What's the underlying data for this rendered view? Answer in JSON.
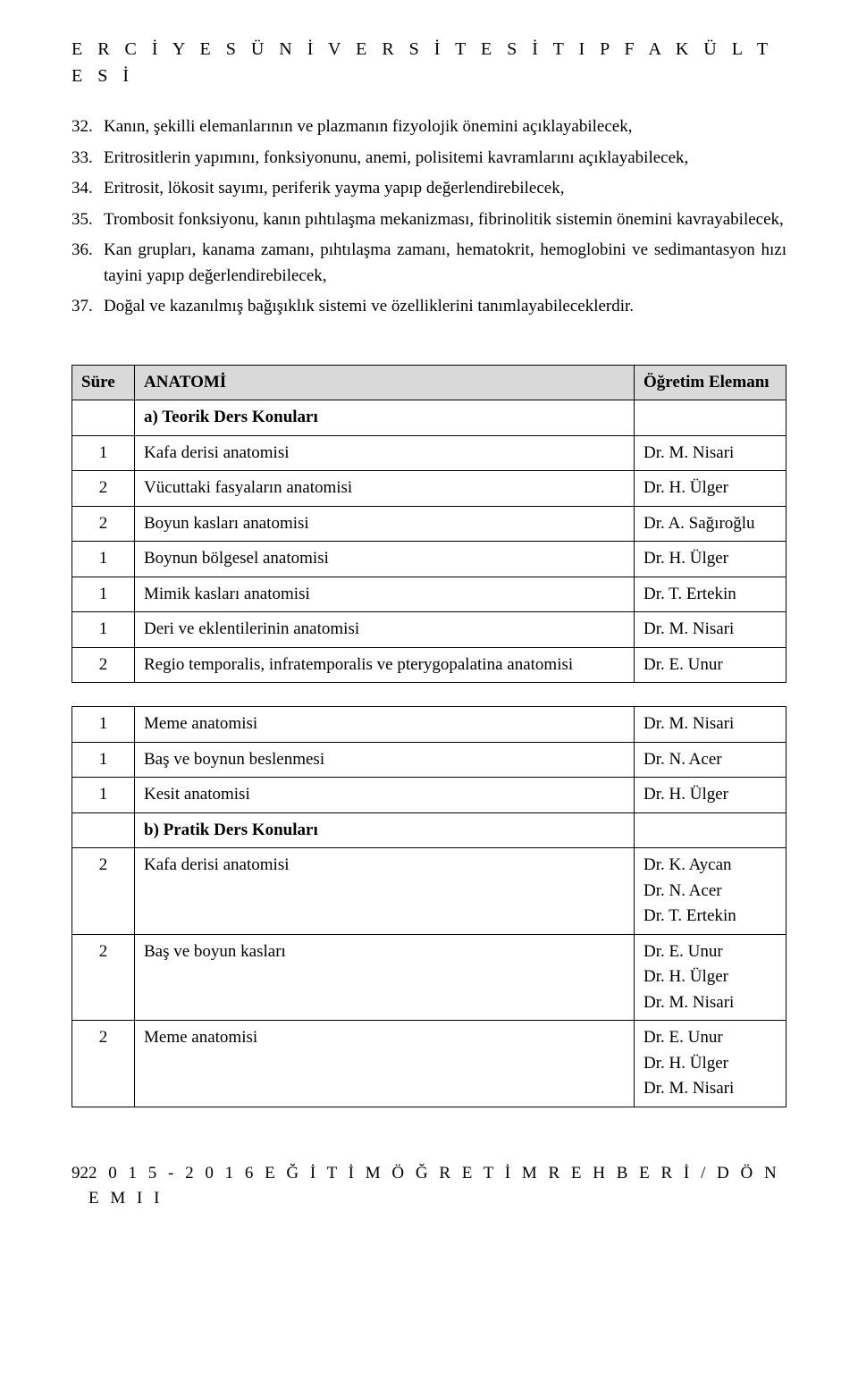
{
  "header": "E R C İ Y E S   Ü N İ V E R S İ T E S İ   T I P   F A K Ü L T E S İ",
  "list": [
    {
      "n": "32.",
      "t": "Kanın, şekilli elemanlarının ve plazmanın fizyolojik önemini açıklayabilecek,"
    },
    {
      "n": "33.",
      "t": "Eritrositlerin yapımını, fonksiyonunu, anemi, polisitemi kavramlarını açıklayabilecek,"
    },
    {
      "n": "34.",
      "t": "Eritrosit, lökosit sayımı, periferik yayma yapıp değerlendirebilecek,"
    },
    {
      "n": "35.",
      "t": "Trombosit fonksiyonu, kanın pıhtılaşma mekanizması, fibrinolitik sistemin önemini kavrayabilecek,"
    },
    {
      "n": "36.",
      "t": "Kan grupları, kanama zamanı, pıhtılaşma zamanı, hematokrit, hemoglobini ve sedimantasyon hızı tayini yapıp değerlendirebilecek,"
    },
    {
      "n": "37.",
      "t": "Doğal ve kazanılmış bağışıklık sistemi ve özelliklerini tanımlayabileceklerdir."
    }
  ],
  "table1": {
    "headers": {
      "c1": "Süre",
      "c2": "ANATOMİ",
      "c3": "Öğretim Elemanı"
    },
    "rows": [
      {
        "sure": "",
        "topic": "a) Teorik Ders Konuları",
        "inst": "",
        "bold": true
      },
      {
        "sure": "1",
        "topic": "Kafa derisi  anatomisi",
        "inst": "Dr. M. Nisari"
      },
      {
        "sure": "2",
        "topic": "Vücuttaki fasyaların anatomisi",
        "inst": "Dr. H. Ülger"
      },
      {
        "sure": "2",
        "topic": "Boyun kasları anatomisi",
        "inst": "Dr. A. Sağıroğlu"
      },
      {
        "sure": "1",
        "topic": "Boynun bölgesel anatomisi",
        "inst": "Dr. H. Ülger"
      },
      {
        "sure": "1",
        "topic": "Mimik kasları anatomisi",
        "inst": "Dr. T. Ertekin"
      },
      {
        "sure": "1",
        "topic": "Deri ve eklentilerinin anatomisi",
        "inst": "Dr. M. Nisari"
      },
      {
        "sure": "2",
        "topic": "Regio temporalis, infratemporalis ve pterygopalatina anatomisi",
        "inst": "Dr. E. Unur"
      }
    ]
  },
  "table2": {
    "rows": [
      {
        "sure": "1",
        "topic": "Meme anatomisi",
        "inst": "Dr. M. Nisari"
      },
      {
        "sure": "1",
        "topic": "Baş ve boynun beslenmesi",
        "inst": "Dr. N. Acer"
      },
      {
        "sure": "1",
        "topic": "Kesit anatomisi",
        "inst": "Dr. H. Ülger"
      },
      {
        "sure": "",
        "topic": "b) Pratik Ders Konuları",
        "inst": "",
        "bold": true
      },
      {
        "sure": "2",
        "topic": "Kafa derisi anatomisi",
        "inst": "Dr. K. Aycan\nDr. N. Acer\nDr. T. Ertekin"
      },
      {
        "sure": "2",
        "topic": "Baş ve boyun kasları",
        "inst": "Dr. E. Unur\nDr. H. Ülger\nDr. M. Nisari"
      },
      {
        "sure": "2",
        "topic": "Meme anatomisi",
        "inst": "Dr. E. Unur\nDr. H. Ülger\nDr. M. Nisari"
      }
    ]
  },
  "footer": {
    "page": "92",
    "text": "2 0 1 5 - 2 0 1 6  E Ğ İ T İ M  Ö Ğ R E T İ M  R E H B E R İ / D Ö N E M  I I"
  }
}
